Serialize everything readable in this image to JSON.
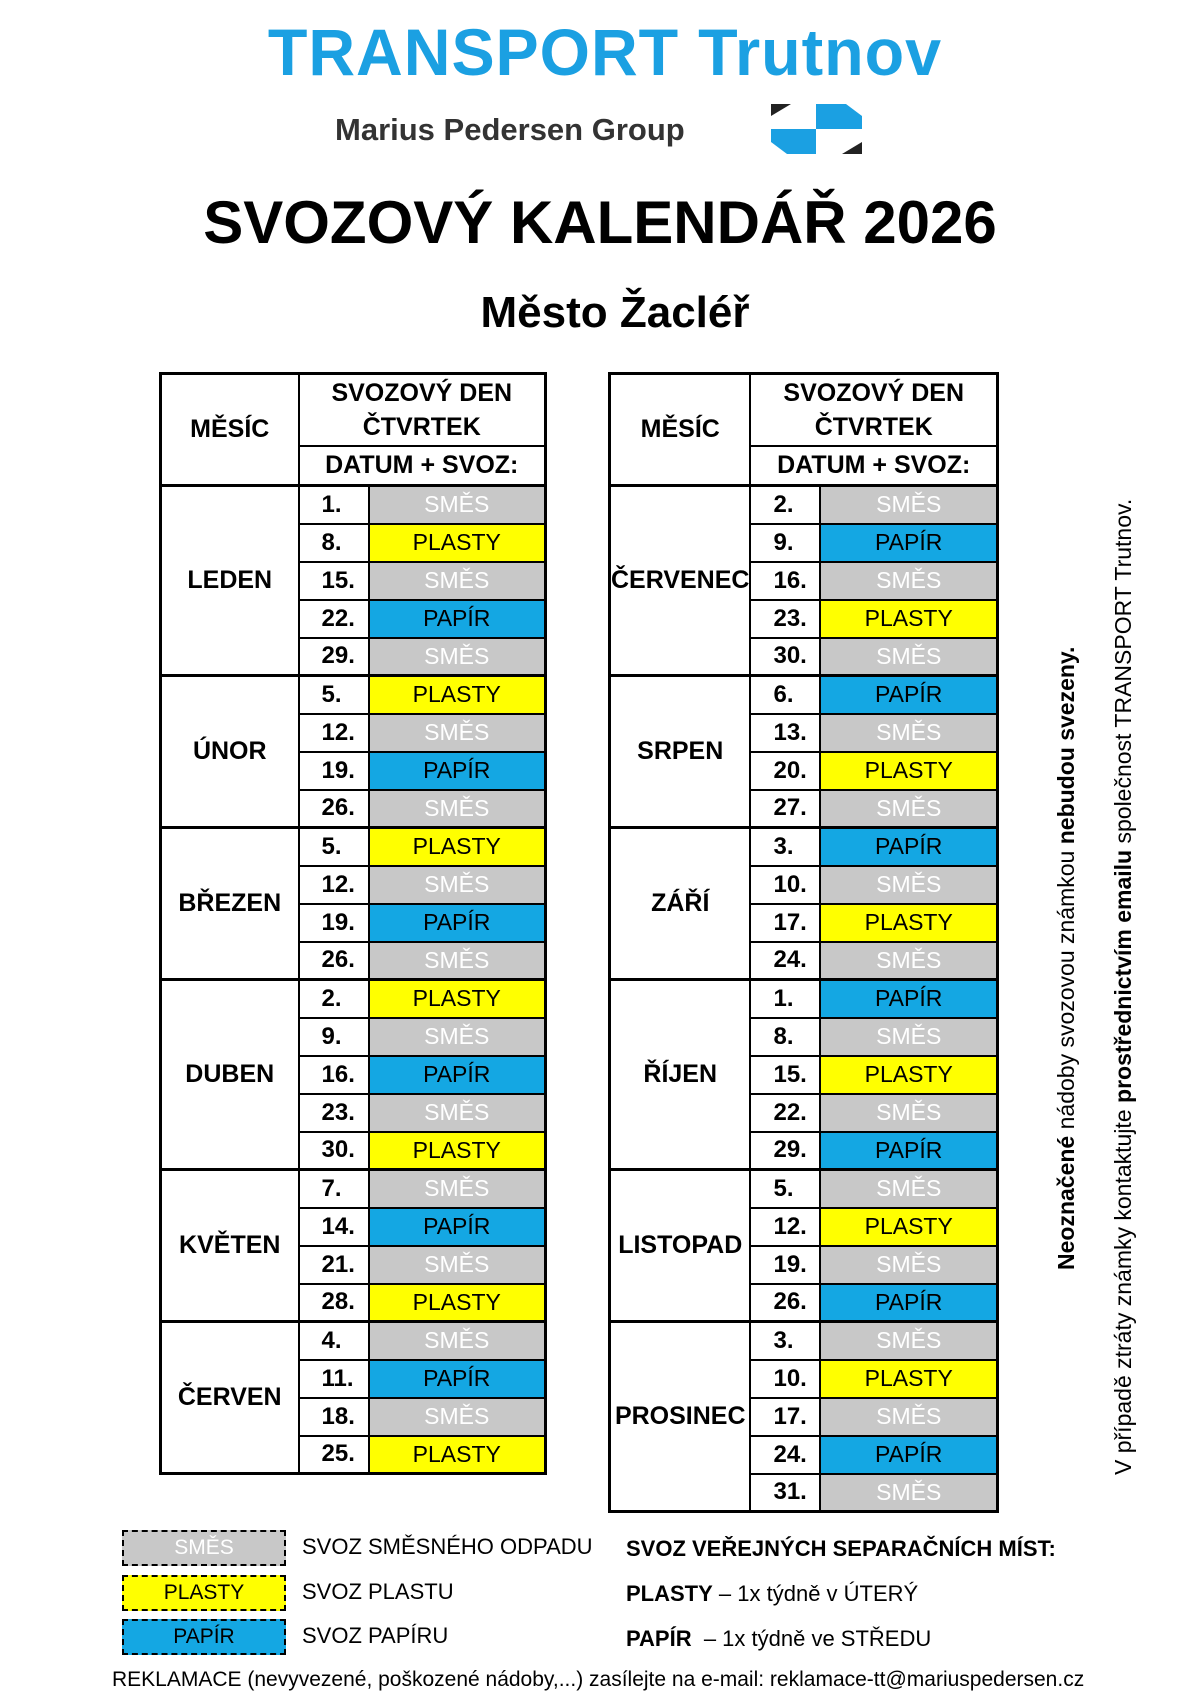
{
  "header": {
    "brand": "TRANSPORT Trutnov",
    "group": "Marius Pedersen Group",
    "title": "SVOZOVÝ KALENDÁŘ 2026",
    "subtitle": "Město Žacléř"
  },
  "colors": {
    "SMĚS": "#c8c8c8",
    "PLASTY": "#ffff00",
    "PAPÍR": "#14a7e3"
  },
  "table_headers": {
    "month": "MĚSÍC",
    "day_line1": "SVOZOVÝ DEN",
    "day_line2": "ČTVRTEK",
    "date_collection": "DATUM + SVOZ:"
  },
  "left_table": [
    {
      "month": "LEDEN",
      "rows": [
        [
          "1.",
          "SMĚS"
        ],
        [
          "8.",
          "PLASTY"
        ],
        [
          "15.",
          "SMĚS"
        ],
        [
          "22.",
          "PAPÍR"
        ],
        [
          "29.",
          "SMĚS"
        ]
      ]
    },
    {
      "month": "ÚNOR",
      "rows": [
        [
          "5.",
          "PLASTY"
        ],
        [
          "12.",
          "SMĚS"
        ],
        [
          "19.",
          "PAPÍR"
        ],
        [
          "26.",
          "SMĚS"
        ]
      ]
    },
    {
      "month": "BŘEZEN",
      "rows": [
        [
          "5.",
          "PLASTY"
        ],
        [
          "12.",
          "SMĚS"
        ],
        [
          "19.",
          "PAPÍR"
        ],
        [
          "26.",
          "SMĚS"
        ]
      ]
    },
    {
      "month": "DUBEN",
      "rows": [
        [
          "2.",
          "PLASTY"
        ],
        [
          "9.",
          "SMĚS"
        ],
        [
          "16.",
          "PAPÍR"
        ],
        [
          "23.",
          "SMĚS"
        ],
        [
          "30.",
          "PLASTY"
        ]
      ]
    },
    {
      "month": "KVĚTEN",
      "rows": [
        [
          "7.",
          "SMĚS"
        ],
        [
          "14.",
          "PAPÍR"
        ],
        [
          "21.",
          "SMĚS"
        ],
        [
          "28.",
          "PLASTY"
        ]
      ]
    },
    {
      "month": "ČERVEN",
      "rows": [
        [
          "4.",
          "SMĚS"
        ],
        [
          "11.",
          "PAPÍR"
        ],
        [
          "18.",
          "SMĚS"
        ],
        [
          "25.",
          "PLASTY"
        ]
      ]
    }
  ],
  "right_table": [
    {
      "month": "ČERVENEC",
      "rows": [
        [
          "2.",
          "SMĚS"
        ],
        [
          "9.",
          "PAPÍR"
        ],
        [
          "16.",
          "SMĚS"
        ],
        [
          "23.",
          "PLASTY"
        ],
        [
          "30.",
          "SMĚS"
        ]
      ]
    },
    {
      "month": "SRPEN",
      "rows": [
        [
          "6.",
          "PAPÍR"
        ],
        [
          "13.",
          "SMĚS"
        ],
        [
          "20.",
          "PLASTY"
        ],
        [
          "27.",
          "SMĚS"
        ]
      ]
    },
    {
      "month": "ZÁŘÍ",
      "rows": [
        [
          "3.",
          "PAPÍR"
        ],
        [
          "10.",
          "SMĚS"
        ],
        [
          "17.",
          "PLASTY"
        ],
        [
          "24.",
          "SMĚS"
        ]
      ]
    },
    {
      "month": "ŘÍJEN",
      "rows": [
        [
          "1.",
          "PAPÍR"
        ],
        [
          "8.",
          "SMĚS"
        ],
        [
          "15.",
          "PLASTY"
        ],
        [
          "22.",
          "SMĚS"
        ],
        [
          "29.",
          "PAPÍR"
        ]
      ]
    },
    {
      "month": "LISTOPAD",
      "rows": [
        [
          "5.",
          "SMĚS"
        ],
        [
          "12.",
          "PLASTY"
        ],
        [
          "19.",
          "SMĚS"
        ],
        [
          "26.",
          "PAPÍR"
        ]
      ]
    },
    {
      "month": "PROSINEC",
      "rows": [
        [
          "3.",
          "SMĚS"
        ],
        [
          "10.",
          "PLASTY"
        ],
        [
          "17.",
          "SMĚS"
        ],
        [
          "24.",
          "PAPÍR"
        ],
        [
          "31.",
          "SMĚS"
        ]
      ]
    }
  ],
  "side_note": {
    "n1_bold": "Neoznačené",
    "n1_text": " nádoby svozovou známkou ",
    "n1_bold2": "nebudou svezeny.",
    "n2_text": "V případě ztráty známky kontaktujte ",
    "n2_bold": "prostřednictvím emailu",
    "n2_text2": " společnost TRANSPORT Trutnov."
  },
  "legend": [
    {
      "label": "SMĚS",
      "desc": "SVOZ SMĚSNÉHO ODPADU"
    },
    {
      "label": "PLASTY",
      "desc": "SVOZ PLASTU"
    },
    {
      "label": "PAPÍR",
      "desc": "SVOZ PAPÍRU"
    }
  ],
  "public_points": {
    "heading": "SVOZ VEŘEJNÝCH SEPARAČNÍCH MÍST:",
    "plasty_label": "PLASTY",
    "plasty_text": " – 1x týdně v ÚTERÝ",
    "papir_label": "PAPÍR",
    "papir_text": "  – 1x týdně ve STŘEDU"
  },
  "footer": "REKLAMACE (nevyvezené, poškozené nádoby,...) zasílejte na e-mail: reklamace-tt@mariuspedersen.cz"
}
